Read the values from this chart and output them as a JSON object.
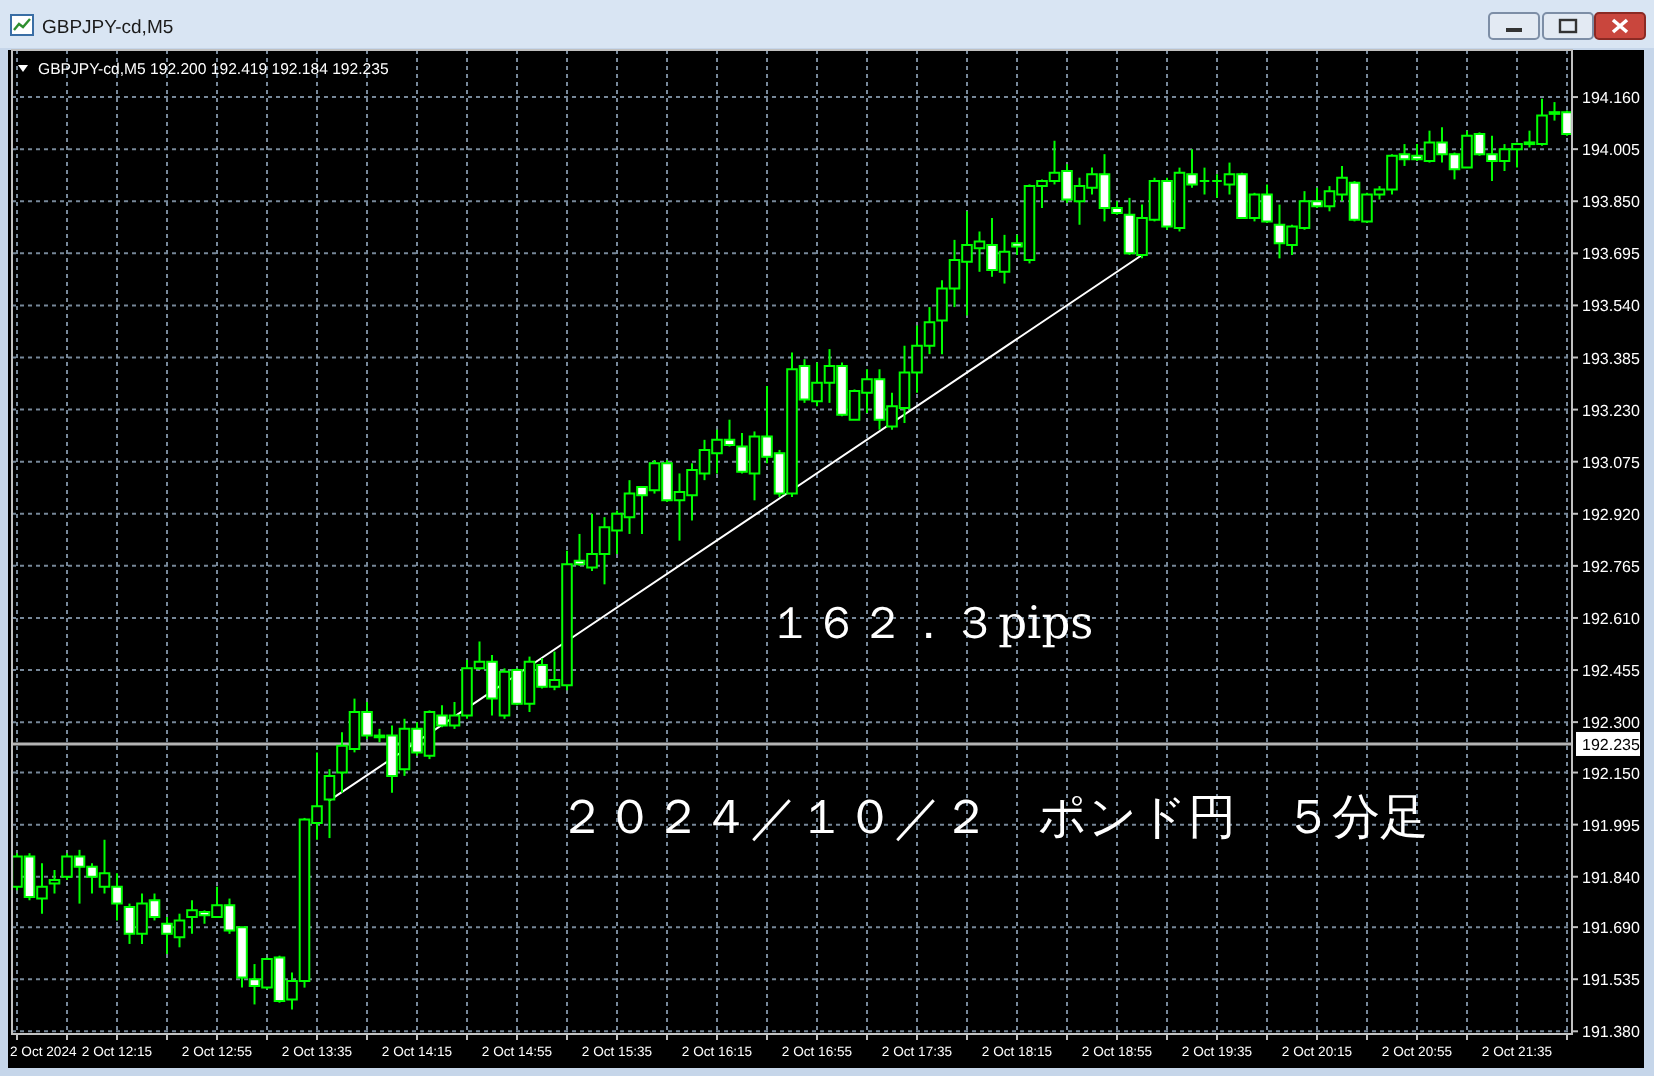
{
  "chart_data": {
    "type": "candlestick",
    "title": "GBPJPY-cd,M5",
    "subtitle": "GBPJPY-cd,M5  192.200 192.419 192.184 192.235",
    "x": [
      "2024-10-02T11:35",
      "2024-10-02T11:40",
      "2024-10-02T11:45",
      "2024-10-02T11:50",
      "2024-10-02T11:55",
      "2024-10-02T12:00",
      "2024-10-02T12:05",
      "2024-10-02T12:10",
      "2024-10-02T12:15",
      "2024-10-02T12:20",
      "2024-10-02T12:25",
      "2024-10-02T12:30",
      "2024-10-02T12:35",
      "2024-10-02T12:40",
      "2024-10-02T12:45",
      "2024-10-02T12:50",
      "2024-10-02T12:55",
      "2024-10-02T13:00",
      "2024-10-02T13:05",
      "2024-10-02T13:10",
      "2024-10-02T13:15",
      "2024-10-02T13:20",
      "2024-10-02T13:25",
      "2024-10-02T13:30",
      "2024-10-02T13:35",
      "2024-10-02T13:40",
      "2024-10-02T13:45",
      "2024-10-02T13:50",
      "2024-10-02T13:55",
      "2024-10-02T14:00",
      "2024-10-02T14:05",
      "2024-10-02T14:10",
      "2024-10-02T14:15",
      "2024-10-02T14:20",
      "2024-10-02T14:25",
      "2024-10-02T14:30",
      "2024-10-02T14:35",
      "2024-10-02T14:40",
      "2024-10-02T14:45",
      "2024-10-02T14:50",
      "2024-10-02T14:55",
      "2024-10-02T15:00",
      "2024-10-02T15:05",
      "2024-10-02T15:10",
      "2024-10-02T15:15",
      "2024-10-02T15:20",
      "2024-10-02T15:25",
      "2024-10-02T15:30",
      "2024-10-02T15:35",
      "2024-10-02T15:40",
      "2024-10-02T15:45",
      "2024-10-02T15:50",
      "2024-10-02T15:55",
      "2024-10-02T16:00",
      "2024-10-02T16:05",
      "2024-10-02T16:10",
      "2024-10-02T16:15",
      "2024-10-02T16:20",
      "2024-10-02T16:25",
      "2024-10-02T16:30",
      "2024-10-02T16:35",
      "2024-10-02T16:40",
      "2024-10-02T16:45",
      "2024-10-02T16:50",
      "2024-10-02T16:55",
      "2024-10-02T17:00",
      "2024-10-02T17:05",
      "2024-10-02T17:10",
      "2024-10-02T17:15",
      "2024-10-02T17:20",
      "2024-10-02T17:25",
      "2024-10-02T17:30",
      "2024-10-02T17:35",
      "2024-10-02T17:40",
      "2024-10-02T17:45",
      "2024-10-02T17:50",
      "2024-10-02T17:55",
      "2024-10-02T18:00",
      "2024-10-02T18:05",
      "2024-10-02T18:10",
      "2024-10-02T18:15",
      "2024-10-02T18:20",
      "2024-10-02T18:25",
      "2024-10-02T18:30",
      "2024-10-02T18:35",
      "2024-10-02T18:40",
      "2024-10-02T18:45",
      "2024-10-02T18:50",
      "2024-10-02T18:55",
      "2024-10-02T19:00",
      "2024-10-02T19:05",
      "2024-10-02T19:10",
      "2024-10-02T19:15",
      "2024-10-02T19:20",
      "2024-10-02T19:25",
      "2024-10-02T19:30",
      "2024-10-02T19:35",
      "2024-10-02T19:40",
      "2024-10-02T19:45",
      "2024-10-02T19:50",
      "2024-10-02T19:55",
      "2024-10-02T20:00",
      "2024-10-02T20:05",
      "2024-10-02T20:10",
      "2024-10-02T20:15",
      "2024-10-02T20:20",
      "2024-10-02T20:25",
      "2024-10-02T20:30",
      "2024-10-02T20:35",
      "2024-10-02T20:40",
      "2024-10-02T20:45",
      "2024-10-02T20:50",
      "2024-10-02T20:55",
      "2024-10-02T21:00",
      "2024-10-02T21:05",
      "2024-10-02T21:10",
      "2024-10-02T21:15",
      "2024-10-02T21:20",
      "2024-10-02T21:25",
      "2024-10-02T21:30",
      "2024-10-02T21:35",
      "2024-10-02T21:40",
      "2024-10-02T21:45",
      "2024-10-02T21:50",
      "2024-10-02T21:55"
    ],
    "ohlc": [
      [
        191.81,
        191.91,
        191.8,
        191.9
      ],
      [
        191.9,
        191.91,
        191.77,
        191.78
      ],
      [
        191.775,
        191.88,
        191.73,
        191.81
      ],
      [
        191.82,
        191.86,
        191.79,
        191.83
      ],
      [
        191.84,
        191.91,
        191.83,
        191.9
      ],
      [
        191.9,
        191.92,
        191.76,
        191.87
      ],
      [
        191.87,
        191.88,
        191.79,
        191.84
      ],
      [
        191.81,
        191.95,
        191.79,
        191.85
      ],
      [
        191.81,
        191.85,
        191.71,
        191.76
      ],
      [
        191.75,
        191.76,
        191.64,
        191.67
      ],
      [
        191.67,
        191.79,
        191.64,
        191.76
      ],
      [
        191.77,
        191.79,
        191.71,
        191.72
      ],
      [
        191.7,
        191.72,
        191.61,
        191.67
      ],
      [
        191.66,
        191.73,
        191.63,
        191.71
      ],
      [
        191.72,
        191.77,
        191.67,
        191.74
      ],
      [
        191.735,
        191.74,
        191.7,
        191.725
      ],
      [
        191.72,
        191.81,
        191.72,
        191.755
      ],
      [
        191.755,
        191.775,
        191.67,
        191.68
      ],
      [
        191.69,
        191.69,
        191.51,
        191.54
      ],
      [
        191.535,
        191.58,
        191.46,
        191.515
      ],
      [
        191.51,
        191.6,
        191.505,
        191.595
      ],
      [
        191.6,
        191.605,
        191.465,
        191.47
      ],
      [
        191.475,
        191.555,
        191.445,
        191.53
      ],
      [
        191.53,
        192.015,
        191.51,
        192.01
      ],
      [
        192.0,
        192.21,
        191.95,
        192.05
      ],
      [
        192.07,
        192.16,
        191.955,
        192.14
      ],
      [
        192.15,
        192.27,
        192.09,
        192.23
      ],
      [
        192.22,
        192.37,
        192.21,
        192.33
      ],
      [
        192.33,
        192.36,
        192.25,
        192.26
      ],
      [
        192.26,
        192.28,
        192.24,
        192.255
      ],
      [
        192.26,
        192.29,
        192.09,
        192.14
      ],
      [
        192.16,
        192.31,
        192.14,
        192.28
      ],
      [
        192.28,
        192.3,
        192.2,
        192.21
      ],
      [
        192.2,
        192.335,
        192.19,
        192.33
      ],
      [
        192.32,
        192.35,
        192.285,
        192.29
      ],
      [
        192.29,
        192.36,
        192.28,
        192.32
      ],
      [
        192.32,
        192.485,
        192.31,
        192.46
      ],
      [
        192.46,
        192.54,
        192.455,
        192.48
      ],
      [
        192.48,
        192.5,
        192.32,
        192.37
      ],
      [
        192.32,
        192.46,
        192.31,
        192.45
      ],
      [
        192.455,
        192.46,
        192.35,
        192.355
      ],
      [
        192.355,
        192.495,
        192.33,
        192.48
      ],
      [
        192.47,
        192.49,
        192.4,
        192.405
      ],
      [
        192.405,
        192.51,
        192.395,
        192.425
      ],
      [
        192.41,
        192.81,
        192.395,
        192.77
      ],
      [
        192.78,
        192.86,
        192.765,
        192.77
      ],
      [
        192.76,
        192.92,
        192.75,
        192.8
      ],
      [
        192.8,
        192.91,
        192.71,
        192.88
      ],
      [
        192.87,
        192.93,
        192.8,
        192.92
      ],
      [
        192.91,
        193.02,
        192.86,
        192.98
      ],
      [
        193.0,
        193.0,
        192.86,
        192.975
      ],
      [
        192.99,
        193.08,
        192.98,
        193.07
      ],
      [
        193.07,
        193.08,
        192.955,
        192.96
      ],
      [
        192.96,
        193.04,
        192.84,
        192.985
      ],
      [
        192.975,
        193.07,
        192.9,
        193.05
      ],
      [
        193.04,
        193.14,
        193.02,
        193.11
      ],
      [
        193.1,
        193.17,
        193.04,
        193.14
      ],
      [
        193.14,
        193.2,
        193.12,
        193.125
      ],
      [
        193.12,
        193.16,
        193.04,
        193.045
      ],
      [
        193.04,
        193.165,
        192.96,
        193.15
      ],
      [
        193.15,
        193.3,
        193.07,
        193.09
      ],
      [
        193.1,
        193.11,
        192.97,
        192.98
      ],
      [
        192.98,
        193.4,
        192.97,
        193.35
      ],
      [
        193.36,
        193.38,
        193.25,
        193.26
      ],
      [
        193.255,
        193.37,
        193.24,
        193.31
      ],
      [
        193.31,
        193.41,
        193.25,
        193.36
      ],
      [
        193.36,
        193.37,
        193.21,
        193.215
      ],
      [
        193.2,
        193.29,
        193.2,
        193.285
      ],
      [
        193.28,
        193.35,
        193.22,
        193.32
      ],
      [
        193.32,
        193.35,
        193.17,
        193.2
      ],
      [
        193.18,
        193.28,
        193.17,
        193.24
      ],
      [
        193.235,
        193.42,
        193.19,
        193.34
      ],
      [
        193.34,
        193.48,
        193.28,
        193.42
      ],
      [
        193.42,
        193.535,
        193.395,
        193.49
      ],
      [
        193.495,
        193.615,
        193.395,
        193.59
      ],
      [
        193.59,
        193.735,
        193.535,
        193.675
      ],
      [
        193.67,
        193.82,
        193.51,
        193.72
      ],
      [
        193.71,
        193.76,
        193.64,
        193.73
      ],
      [
        193.72,
        193.8,
        193.625,
        193.645
      ],
      [
        193.64,
        193.75,
        193.605,
        193.7
      ],
      [
        193.725,
        193.75,
        193.69,
        193.715
      ],
      [
        193.675,
        193.9,
        193.665,
        193.895
      ],
      [
        193.895,
        193.915,
        193.83,
        193.91
      ],
      [
        193.91,
        194.03,
        193.9,
        193.935
      ],
      [
        193.94,
        193.96,
        193.845,
        193.855
      ],
      [
        193.85,
        193.92,
        193.78,
        193.895
      ],
      [
        193.89,
        193.95,
        193.87,
        193.93
      ],
      [
        193.93,
        193.99,
        193.79,
        193.83
      ],
      [
        193.83,
        193.85,
        193.81,
        193.815
      ],
      [
        193.81,
        193.86,
        193.69,
        193.695
      ],
      [
        193.69,
        193.84,
        193.68,
        193.8
      ],
      [
        193.795,
        193.92,
        193.79,
        193.91
      ],
      [
        193.91,
        193.92,
        193.765,
        193.775
      ],
      [
        193.77,
        193.95,
        193.76,
        193.935
      ],
      [
        193.93,
        194.005,
        193.89,
        193.9
      ],
      [
        193.91,
        193.95,
        193.87,
        193.91
      ],
      [
        193.91,
        193.93,
        193.86,
        193.91
      ],
      [
        193.9,
        193.965,
        193.87,
        193.93
      ],
      [
        193.93,
        193.935,
        193.8,
        193.8
      ],
      [
        193.8,
        193.875,
        193.79,
        193.87
      ],
      [
        193.87,
        193.9,
        193.785,
        193.79
      ],
      [
        193.78,
        193.84,
        193.68,
        193.725
      ],
      [
        193.72,
        193.78,
        193.69,
        193.775
      ],
      [
        193.77,
        193.88,
        193.765,
        193.85
      ],
      [
        193.85,
        193.89,
        193.83,
        193.835
      ],
      [
        193.835,
        193.895,
        193.82,
        193.88
      ],
      [
        193.87,
        193.955,
        193.85,
        193.92
      ],
      [
        193.905,
        193.91,
        193.79,
        193.795
      ],
      [
        193.79,
        193.875,
        193.785,
        193.87
      ],
      [
        193.87,
        193.895,
        193.855,
        193.885
      ],
      [
        193.885,
        193.99,
        193.87,
        193.985
      ],
      [
        193.99,
        194.02,
        193.955,
        193.975
      ],
      [
        193.985,
        194.02,
        193.97,
        193.975
      ],
      [
        193.97,
        194.06,
        193.965,
        194.025
      ],
      [
        194.025,
        194.07,
        193.965,
        193.99
      ],
      [
        193.99,
        193.995,
        193.915,
        193.945
      ],
      [
        193.95,
        194.06,
        193.95,
        194.045
      ],
      [
        194.05,
        194.055,
        193.985,
        193.99
      ],
      [
        193.99,
        194.045,
        193.91,
        193.97
      ],
      [
        193.97,
        194.02,
        193.94,
        194.005
      ],
      [
        194.005,
        194.025,
        193.95,
        194.02
      ],
      [
        194.02,
        194.06,
        194.01,
        194.025
      ],
      [
        194.02,
        194.155,
        194.015,
        194.105
      ],
      [
        194.11,
        194.145,
        194.09,
        194.115
      ],
      [
        194.115,
        194.12,
        194.045,
        194.05
      ]
    ],
    "color": "#00ff00",
    "colors": [
      "#000000",
      "#ffffff",
      "#000000",
      "#000000",
      "#000000",
      "#ffffff",
      "#ffffff",
      "#000000",
      "#ffffff",
      "#ffffff",
      "#000000",
      "#ffffff",
      "#ffffff",
      "#000000",
      "#000000",
      "#ffffff",
      "#000000",
      "#ffffff",
      "#ffffff",
      "#ffffff",
      "#000000",
      "#ffffff",
      "#000000",
      "#000000",
      "#000000",
      "#000000",
      "#000000",
      "#000000",
      "#ffffff",
      "#ffffff",
      "#ffffff",
      "#000000",
      "#ffffff",
      "#000000",
      "#ffffff",
      "#000000",
      "#000000",
      "#000000",
      "#ffffff",
      "#000000",
      "#ffffff",
      "#000000",
      "#ffffff",
      "#000000",
      "#000000",
      "#ffffff",
      "#000000",
      "#000000",
      "#000000",
      "#000000",
      "#ffffff",
      "#000000",
      "#ffffff",
      "#000000",
      "#000000",
      "#000000",
      "#000000",
      "#ffffff",
      "#ffffff",
      "#000000",
      "#ffffff",
      "#ffffff",
      "#000000",
      "#ffffff",
      "#000000",
      "#000000",
      "#ffffff",
      "#000000",
      "#000000",
      "#ffffff",
      "#000000",
      "#000000",
      "#000000",
      "#000000",
      "#000000",
      "#000000",
      "#000000",
      "#000000",
      "#ffffff",
      "#000000",
      "#ffffff",
      "#000000",
      "#000000",
      "#000000",
      "#ffffff",
      "#000000",
      "#000000",
      "#ffffff",
      "#ffffff",
      "#ffffff",
      "#000000",
      "#000000",
      "#ffffff",
      "#000000",
      "#ffffff",
      "#00ff00",
      "#00ff00",
      "#000000",
      "#ffffff",
      "#000000",
      "#ffffff",
      "#ffffff",
      "#000000",
      "#000000",
      "#ffffff",
      "#000000",
      "#000000",
      "#ffffff",
      "#000000",
      "#000000",
      "#000000",
      "#ffffff",
      "#ffffff",
      "#000000",
      "#ffffff",
      "#ffffff",
      "#000000",
      "#ffffff",
      "#ffffff",
      "#000000",
      "#000000",
      "#000000",
      "#000000",
      "#000000",
      "#ffffff"
    ],
    "series": [
      {
        "type": "line",
        "x": [
          "2024-10-02T13:40",
          "2024-10-02T19:05"
        ],
        "values": [
          192.067,
          193.69
        ],
        "color": "#ffffff"
      }
    ],
    "xlim": [
      "2024-10-02T11:33",
      "2024-10-02T21:57"
    ],
    "ylim": [
      191.372,
      194.3
    ],
    "xticks": [
      {
        "value": "2024-10-02T11:35",
        "label": "2 Oct 2024"
      },
      {
        "value": "2024-10-02T11:55",
        "label": null
      },
      {
        "value": "2024-10-02T12:15",
        "label": "2 Oct 12:15"
      },
      {
        "value": "2024-10-02T12:35",
        "label": null
      },
      {
        "value": "2024-10-02T12:55",
        "label": "2 Oct 12:55"
      },
      {
        "value": "2024-10-02T13:15",
        "label": null
      },
      {
        "value": "2024-10-02T13:35",
        "label": "2 Oct 13:35"
      },
      {
        "value": "2024-10-02T13:55",
        "label": null
      },
      {
        "value": "2024-10-02T14:15",
        "label": "2 Oct 14:15"
      },
      {
        "value": "2024-10-02T14:35",
        "label": null
      },
      {
        "value": "2024-10-02T14:55",
        "label": "2 Oct 14:55"
      },
      {
        "value": "2024-10-02T15:15",
        "label": null
      },
      {
        "value": "2024-10-02T15:35",
        "label": "2 Oct 15:35"
      },
      {
        "value": "2024-10-02T15:55",
        "label": null
      },
      {
        "value": "2024-10-02T16:15",
        "label": "2 Oct 16:15"
      },
      {
        "value": "2024-10-02T16:35",
        "label": null
      },
      {
        "value": "2024-10-02T16:55",
        "label": "2 Oct 16:55"
      },
      {
        "value": "2024-10-02T17:15",
        "label": null
      },
      {
        "value": "2024-10-02T17:35",
        "label": "2 Oct 17:35"
      },
      {
        "value": "2024-10-02T17:55",
        "label": null
      },
      {
        "value": "2024-10-02T18:15",
        "label": "2 Oct 18:15"
      },
      {
        "value": "2024-10-02T18:35",
        "label": null
      },
      {
        "value": "2024-10-02T18:55",
        "label": "2 Oct 18:55"
      },
      {
        "value": "2024-10-02T19:15",
        "label": null
      },
      {
        "value": "2024-10-02T19:35",
        "label": "2 Oct 19:35"
      },
      {
        "value": "2024-10-02T19:55",
        "label": null
      },
      {
        "value": "2024-10-02T20:15",
        "label": "2 Oct 20:15"
      },
      {
        "value": "2024-10-02T20:35",
        "label": null
      },
      {
        "value": "2024-10-02T20:55",
        "label": "2 Oct 20:55"
      },
      {
        "value": "2024-10-02T21:15",
        "label": null
      },
      {
        "value": "2024-10-02T21:35",
        "label": "2 Oct 21:35"
      },
      {
        "value": "2024-10-02T21:55",
        "label": null
      }
    ],
    "yticks": [
      {
        "value": 191.38,
        "label": "191.380"
      },
      191.535,
      {
        "value": 191.69,
        "label": "191.690"
      },
      {
        "value": 191.84,
        "label": "191.840"
      },
      191.995,
      {
        "value": 192.15,
        "label": "192.150"
      },
      {
        "value": 192.3,
        "label": "192.300"
      },
      192.455,
      {
        "value": 192.61,
        "label": "192.610"
      },
      192.765,
      {
        "value": 192.92,
        "label": "192.920"
      },
      193.075,
      {
        "value": 193.23,
        "label": "193.230"
      },
      193.385,
      {
        "value": 193.54,
        "label": "193.540"
      },
      193.695,
      {
        "value": 193.85,
        "label": "193.850"
      },
      194.005,
      {
        "value": 194.16,
        "label": "194.160"
      }
    ],
    "grid": true,
    "ref_lines": [
      {
        "axis": "y",
        "value": 192.235,
        "label": "192.235",
        "color": "#b4b4b4"
      }
    ],
    "annotations": [
      "１６２．３pips",
      "２０２４／１０／２　ポンド円　５分足"
    ]
  }
}
